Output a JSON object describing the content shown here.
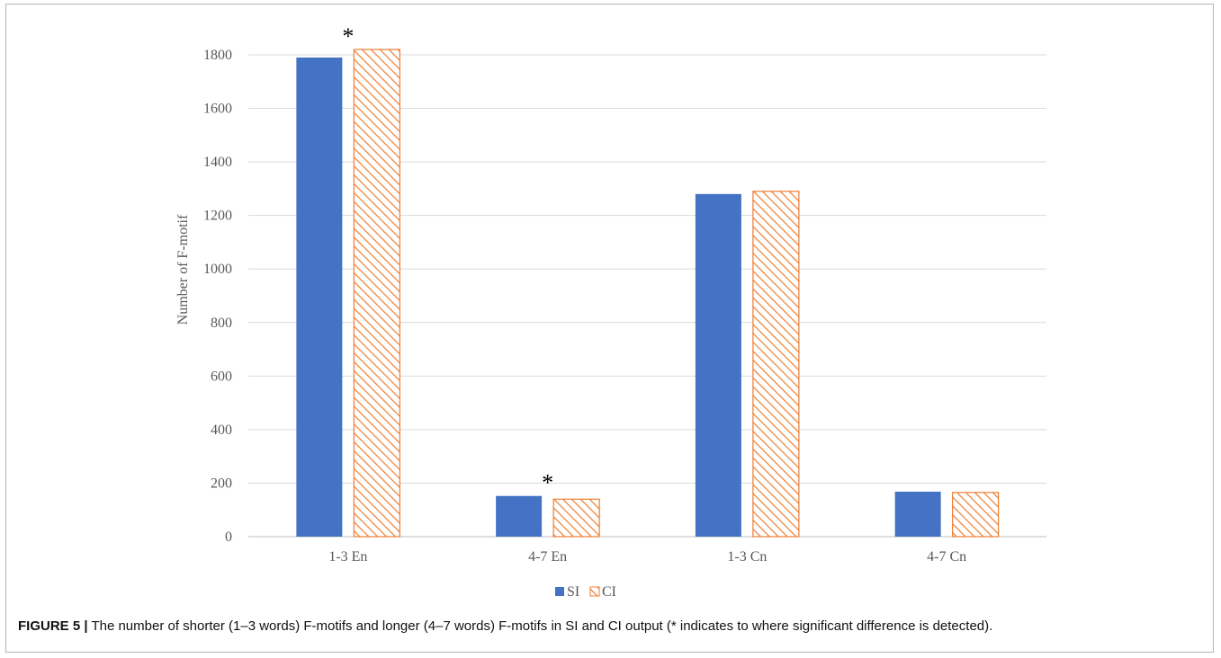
{
  "chart_data": {
    "type": "bar",
    "categories": [
      "1-3 En",
      "4-7 En",
      "1-3 Cn",
      "4-7 Cn"
    ],
    "series": [
      {
        "name": "SI",
        "values": [
          1790,
          152,
          1280,
          168
        ],
        "color": "#4472C4",
        "pattern": "solid"
      },
      {
        "name": "CI",
        "values": [
          1820,
          140,
          1290,
          165
        ],
        "color": "#ED7D31",
        "pattern": "diagonal-hatch"
      }
    ],
    "ylabel": "Number of F-motif",
    "xlabel": "",
    "ylim": [
      0,
      1800
    ],
    "yticks": [
      0,
      200,
      400,
      600,
      800,
      1000,
      1200,
      1400,
      1600,
      1800
    ],
    "grid": true,
    "legend_position": "bottom",
    "annotations": [
      {
        "text": "*",
        "category": "1-3 En"
      },
      {
        "text": "*",
        "category": "4-7 En"
      }
    ]
  },
  "caption": {
    "label": "FIGURE 5 |",
    "text": " The number of shorter (1–3 words) F-motifs and longer (4–7 words) F-motifs in SI and CI output (* indicates to where significant difference is detected)."
  }
}
